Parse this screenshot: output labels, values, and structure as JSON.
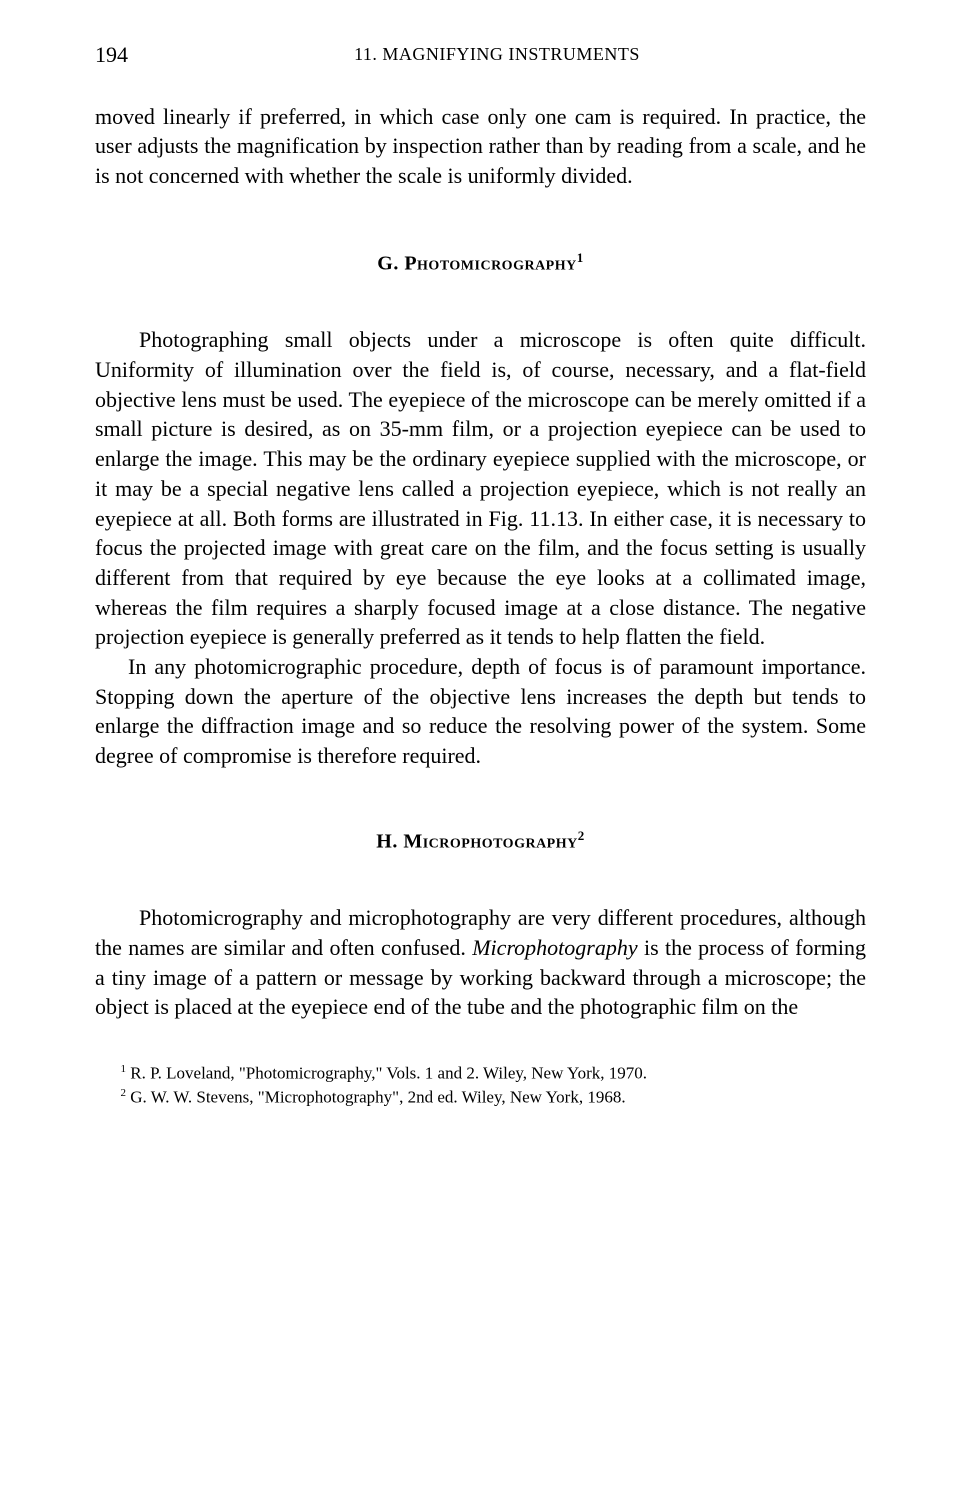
{
  "header": {
    "page_number": "194",
    "running_head": "11. MAGNIFYING INSTRUMENTS"
  },
  "continuation": "moved linearly if preferred, in which case only one cam is required. In practice, the user adjusts the magnification by inspection rather than by reading from a scale, and he is not concerned with whether the scale is uniformly divided.",
  "section_g": {
    "prefix": "G. ",
    "title": "Photomicrography",
    "footnote_marker": "1",
    "para1": "Photographing small objects under a microscope is often quite difficult. Uniformity of illumination over the field is, of course, necessary, and a flat-field objective lens must be used. The eyepiece of the microscope can be merely omitted if a small picture is desired, as on 35-mm film, or a projection eyepiece can be used to enlarge the image. This may be the ordinary eyepiece supplied with the microscope, or it may be a special negative lens called a projection eyepiece, which is not really an eyepiece at all. Both forms are illustrated in Fig. 11.13. In either case, it is necessary to focus the projected image with great care on the film, and the focus setting is usually different from that required by eye because the eye looks at a collimated image, whereas the film requires a sharply focused image at a close distance. The negative projection eyepiece is generally preferred as it tends to help flatten the field.",
    "para2": "In any photomicrographic procedure, depth of focus is of paramount importance. Stopping down the aperture of the objective lens increases the depth but tends to enlarge the diffraction image and so reduce the resolving power of the system. Some degree of compromise is therefore required."
  },
  "section_h": {
    "prefix": "H. ",
    "title": "Microphotography",
    "footnote_marker": "2",
    "para1_before_em": "Photomicrography and microphotography are very different procedures, although the names are similar and often confused. ",
    "para1_em": "Microphotography",
    "para1_after_em": " is the process of forming a tiny image of a pattern or message by working backward through a microscope; the object is placed at the eyepiece end of the tube and the photographic film on the"
  },
  "footnotes": {
    "fn1_marker": "1",
    "fn1_text": " R. P. Loveland, \"Photomicrography,\" Vols. 1 and 2. Wiley, New York, 1970.",
    "fn2_marker": "2",
    "fn2_text": " G. W. W. Stevens, \"Microphotography\", 2nd ed. Wiley, New York, 1968."
  }
}
